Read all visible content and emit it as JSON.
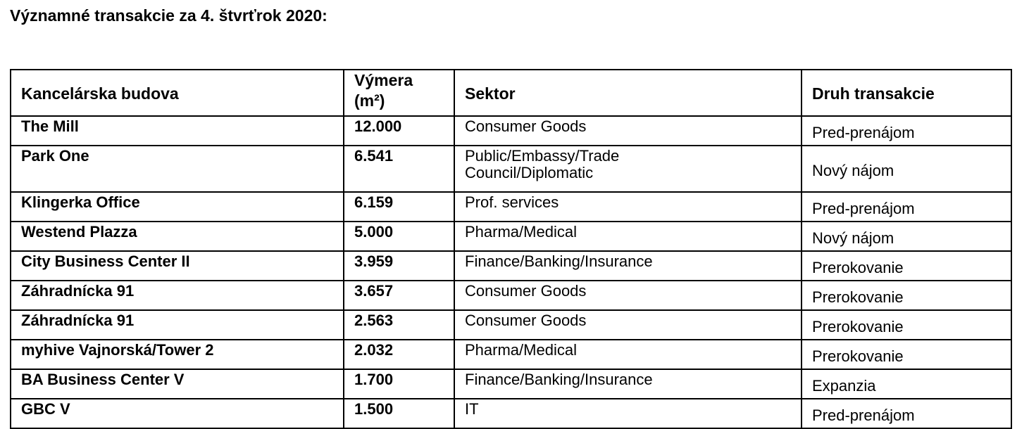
{
  "title": "Významné transakcie za 4. štvrťrok 2020:",
  "table": {
    "headers": {
      "building": "Kancelárska budova",
      "area_line1": "Výmera",
      "area_line2": "(m²)",
      "sector": "Sektor",
      "type": "Druh transakcie"
    },
    "rows": [
      {
        "building": "The Mill",
        "area": "12.000",
        "sector": [
          "Consumer Goods",
          ""
        ],
        "type": "Pred-prenájom"
      },
      {
        "building": "Park One",
        "area": "6.541",
        "sector": [
          "Public/Embassy/Trade",
          "Council/Diplomatic"
        ],
        "type": "Nový nájom"
      },
      {
        "building": "Klingerka Office",
        "area": "6.159",
        "sector": [
          "Prof. services",
          ""
        ],
        "type": "Pred-prenájom"
      },
      {
        "building": "Westend Plazza",
        "area": "5.000",
        "sector": [
          "Pharma/Medical",
          ""
        ],
        "type": "Nový nájom"
      },
      {
        "building": "City Business Center II",
        "area": "3.959",
        "sector": [
          "Finance/Banking/Insurance",
          ""
        ],
        "type": "Prerokovanie"
      },
      {
        "building": "Záhradnícka 91",
        "area": "3.657",
        "sector": [
          "Consumer Goods",
          ""
        ],
        "type": "Prerokovanie"
      },
      {
        "building": "Záhradnícka 91",
        "area": "2.563",
        "sector": [
          "Consumer Goods",
          ""
        ],
        "type": "Prerokovanie"
      },
      {
        "building": "myhive Vajnorská/Tower 2",
        "area": "2.032",
        "sector": [
          "Pharma/Medical",
          ""
        ],
        "type": "Prerokovanie"
      },
      {
        "building": "BA Business Center V",
        "area": "1.700",
        "sector": [
          "Finance/Banking/Insurance",
          ""
        ],
        "type": "Expanzia"
      },
      {
        "building": "GBC V",
        "area": "1.500",
        "sector": [
          "IT",
          ""
        ],
        "type": "Pred-prenájom"
      }
    ]
  }
}
